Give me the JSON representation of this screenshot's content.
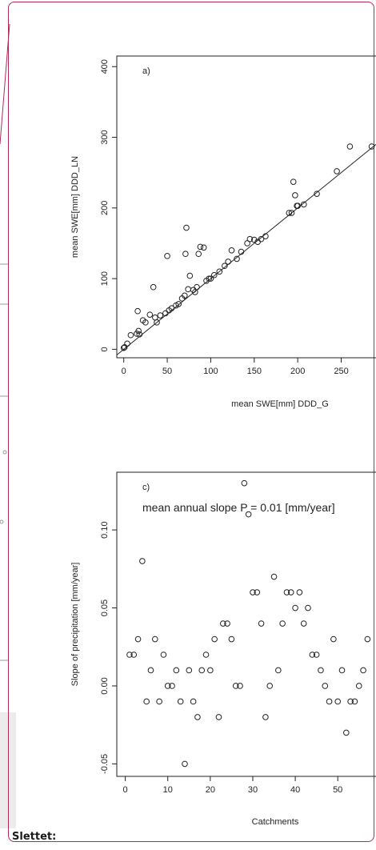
{
  "comment_label": "Slettet:",
  "chart_data": [
    {
      "type": "scatter",
      "panel_label": "a)",
      "xlabel": "mean SWE[mm] DDD_G",
      "ylabel": "mean SWE[mm] DDD_LN",
      "xlim": [
        -8,
        290
      ],
      "ylim": [
        -12,
        415
      ],
      "xticks": [
        0,
        50,
        100,
        150,
        200,
        250
      ],
      "yticks": [
        0,
        100,
        200,
        300,
        400
      ],
      "reference_line": "1:1",
      "points": [
        [
          0,
          2
        ],
        [
          1,
          3
        ],
        [
          4,
          8
        ],
        [
          8,
          20
        ],
        [
          15,
          22
        ],
        [
          16,
          54
        ],
        [
          17,
          26
        ],
        [
          18,
          21
        ],
        [
          22,
          41
        ],
        [
          25,
          38
        ],
        [
          30,
          49
        ],
        [
          34,
          88
        ],
        [
          36,
          45
        ],
        [
          38,
          38
        ],
        [
          42,
          48
        ],
        [
          48,
          51
        ],
        [
          50,
          132
        ],
        [
          52,
          55
        ],
        [
          55,
          58
        ],
        [
          60,
          62
        ],
        [
          63,
          64
        ],
        [
          67,
          72
        ],
        [
          70,
          76
        ],
        [
          71,
          135
        ],
        [
          72,
          172
        ],
        [
          74,
          85
        ],
        [
          76,
          104
        ],
        [
          80,
          84
        ],
        [
          82,
          81
        ],
        [
          84,
          88
        ],
        [
          86,
          135
        ],
        [
          88,
          145
        ],
        [
          92,
          144
        ],
        [
          95,
          97
        ],
        [
          98,
          100
        ],
        [
          100,
          100
        ],
        [
          104,
          105
        ],
        [
          110,
          110
        ],
        [
          116,
          118
        ],
        [
          120,
          124
        ],
        [
          124,
          140
        ],
        [
          130,
          128
        ],
        [
          135,
          138
        ],
        [
          142,
          150
        ],
        [
          145,
          156
        ],
        [
          150,
          155
        ],
        [
          154,
          152
        ],
        [
          158,
          156
        ],
        [
          163,
          160
        ],
        [
          190,
          193
        ],
        [
          193,
          193
        ],
        [
          195,
          237
        ],
        [
          197,
          218
        ],
        [
          199,
          203
        ],
        [
          200,
          203
        ],
        [
          207,
          205
        ],
        [
          222,
          220
        ],
        [
          245,
          252
        ],
        [
          260,
          287
        ],
        [
          285,
          287
        ]
      ]
    },
    {
      "type": "scatter",
      "panel_label": "c)",
      "annotation": "mean annual slope P = 0.01  [mm/year]",
      "xlabel": "Catchments",
      "ylabel": "Slope of precipitation [mm/year]",
      "xlim": [
        -2,
        59
      ],
      "ylim": [
        -0.058,
        0.137
      ],
      "xticks": [
        0,
        10,
        20,
        30,
        40,
        50
      ],
      "yticks": [
        -0.05,
        0.0,
        0.05,
        0.1
      ],
      "ytick_labels": [
        "-0.05",
        "0.00",
        "0.05",
        "0.10"
      ],
      "points": [
        [
          1,
          0.02
        ],
        [
          2,
          0.02
        ],
        [
          3,
          0.03
        ],
        [
          4,
          0.08
        ],
        [
          5,
          -0.01
        ],
        [
          6,
          0.01
        ],
        [
          7,
          0.03
        ],
        [
          8,
          -0.01
        ],
        [
          9,
          0.02
        ],
        [
          10,
          0.0
        ],
        [
          11,
          0.0
        ],
        [
          12,
          0.01
        ],
        [
          13,
          -0.01
        ],
        [
          14,
          -0.05
        ],
        [
          15,
          0.01
        ],
        [
          16,
          -0.01
        ],
        [
          17,
          -0.02
        ],
        [
          18,
          0.01
        ],
        [
          19,
          0.02
        ],
        [
          20,
          0.01
        ],
        [
          21,
          0.03
        ],
        [
          22,
          -0.02
        ],
        [
          23,
          0.04
        ],
        [
          24,
          0.04
        ],
        [
          25,
          0.03
        ],
        [
          26,
          0.0
        ],
        [
          27,
          0.0
        ],
        [
          28,
          0.13
        ],
        [
          29,
          0.11
        ],
        [
          30,
          0.06
        ],
        [
          31,
          0.06
        ],
        [
          32,
          0.04
        ],
        [
          33,
          -0.02
        ],
        [
          34,
          0.0
        ],
        [
          35,
          0.07
        ],
        [
          36,
          0.01
        ],
        [
          37,
          0.04
        ],
        [
          38,
          0.06
        ],
        [
          39,
          0.06
        ],
        [
          40,
          0.05
        ],
        [
          41,
          0.06
        ],
        [
          42,
          0.04
        ],
        [
          43,
          0.05
        ],
        [
          44,
          0.02
        ],
        [
          45,
          0.02
        ],
        [
          46,
          0.01
        ],
        [
          47,
          0.0
        ],
        [
          48,
          -0.01
        ],
        [
          49,
          0.03
        ],
        [
          50,
          -0.01
        ],
        [
          51,
          0.01
        ],
        [
          52,
          -0.03
        ],
        [
          53,
          -0.01
        ],
        [
          54,
          -0.01
        ],
        [
          55,
          0.0
        ],
        [
          56,
          0.01
        ],
        [
          57,
          0.03
        ]
      ]
    }
  ]
}
